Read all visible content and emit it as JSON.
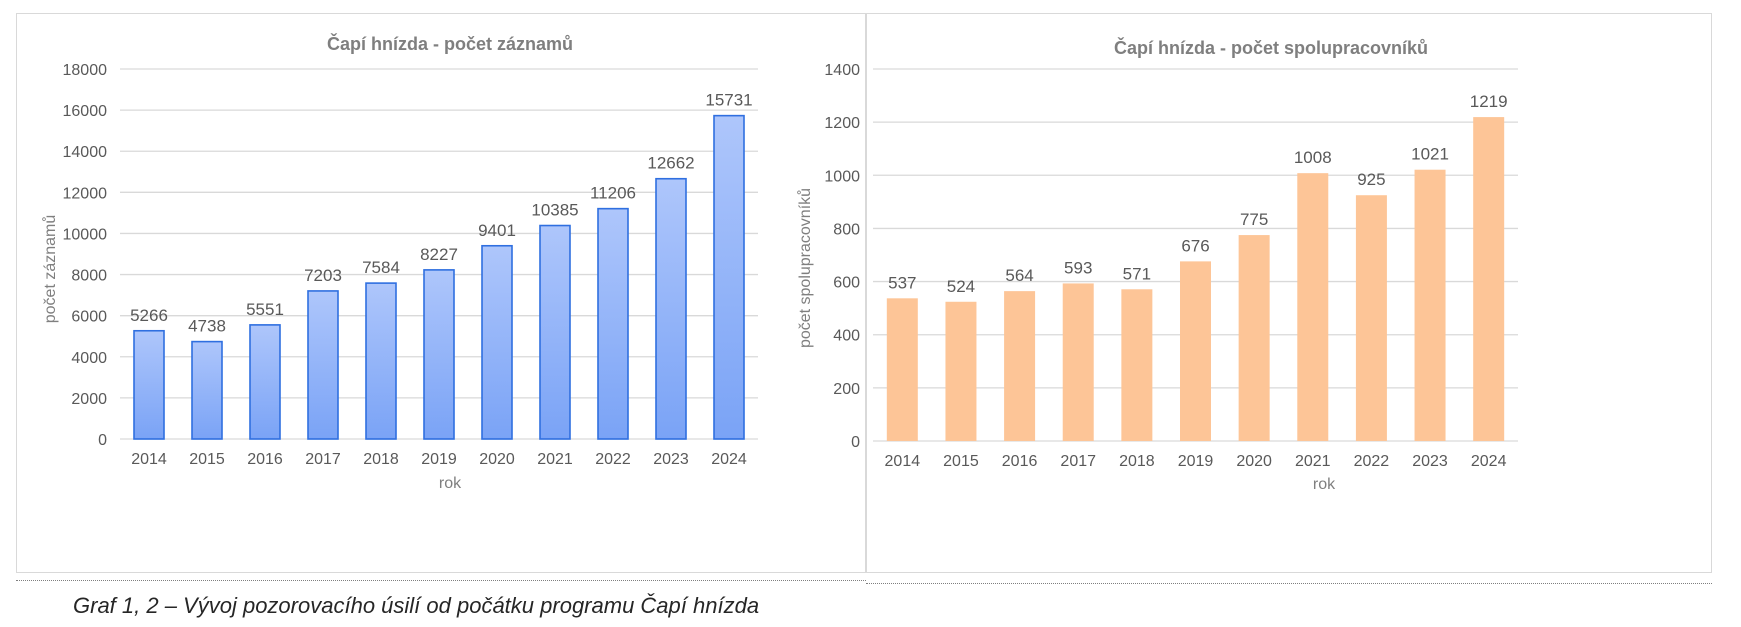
{
  "chart_data": [
    {
      "type": "bar",
      "title": "Čapí hnízda - počet záznamů",
      "xlabel": "rok",
      "ylabel": "počet záznamů",
      "categories": [
        "2014",
        "2015",
        "2016",
        "2017",
        "2018",
        "2019",
        "2020",
        "2021",
        "2022",
        "2023",
        "2024"
      ],
      "values": [
        5266,
        4738,
        5551,
        7203,
        7584,
        8227,
        9401,
        10385,
        11206,
        12662,
        15731
      ],
      "ylim": [
        0,
        18000
      ],
      "yticks": [
        0,
        2000,
        4000,
        6000,
        8000,
        10000,
        12000,
        14000,
        16000,
        18000
      ],
      "grid": true,
      "data_labels": true,
      "colors": {
        "bar_top": "#aec6fb",
        "bar_bottom": "#7aa3f6",
        "bar_border": "#2f6fe0"
      }
    },
    {
      "type": "bar",
      "title": "Čapí hnízda - počet spolupracovníků",
      "xlabel": "rok",
      "ylabel": "počet spolupracovníků",
      "categories": [
        "2014",
        "2015",
        "2016",
        "2017",
        "2018",
        "2019",
        "2020",
        "2021",
        "2022",
        "2023",
        "2024"
      ],
      "values": [
        537,
        524,
        564,
        593,
        571,
        676,
        775,
        1008,
        925,
        1021,
        1219
      ],
      "ylim": [
        0,
        1400
      ],
      "yticks": [
        0,
        200,
        400,
        600,
        800,
        1000,
        1200,
        1400
      ],
      "grid": true,
      "data_labels": true,
      "colors": {
        "bar_fill": "#fdc597"
      }
    }
  ],
  "caption": "Graf 1, 2 – Vývoj pozorovacího úsilí od počátku programu Čapí hnízda"
}
